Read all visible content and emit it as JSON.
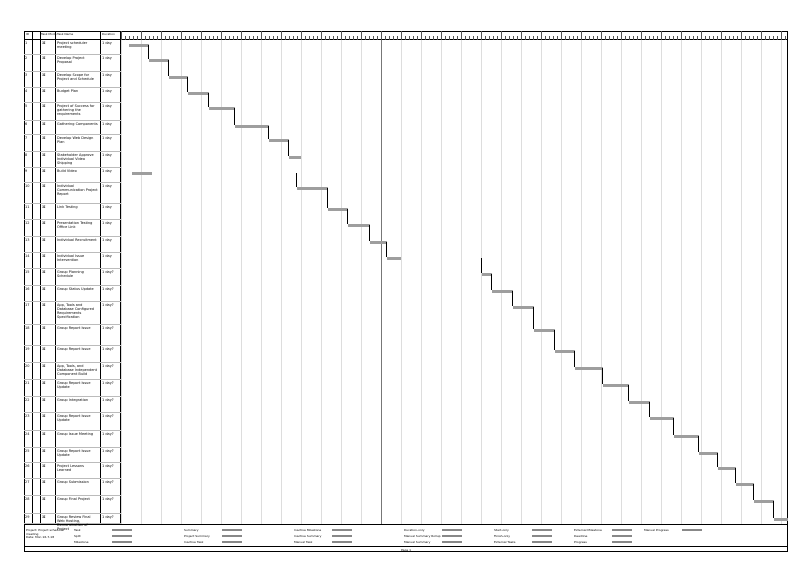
{
  "columns": {
    "id": "ID",
    "mode": "Task Mode",
    "name": "Task Name",
    "duration": "Duration"
  },
  "tasks": [
    {
      "id": "1",
      "name": "Project scheduler meeting",
      "duration": "1 day"
    },
    {
      "id": "2",
      "name": "Develop Project Proposal",
      "duration": "1 day"
    },
    {
      "id": "3",
      "name": "Develop Scope for Project and Schedule",
      "duration": "1 day"
    },
    {
      "id": "4",
      "name": "Budget Plan",
      "duration": "1 day"
    },
    {
      "id": "5",
      "name": "Project of Success for gathering the requirements",
      "duration": "1 day"
    },
    {
      "id": "6",
      "name": "Gathering Components",
      "duration": "1 day"
    },
    {
      "id": "7",
      "name": "Develop Web Design Plan",
      "duration": "1 day"
    },
    {
      "id": "8",
      "name": "Stakeholder Approve Individual Video Shipping",
      "duration": "1 day"
    },
    {
      "id": "9",
      "name": "Build Video",
      "duration": "1 day"
    },
    {
      "id": "10",
      "name": "Individual Communication Project Report",
      "duration": "1 day"
    },
    {
      "id": "11",
      "name": "Link Testing",
      "duration": "1 day"
    },
    {
      "id": "12",
      "name": "Presentation Testing Office Link",
      "duration": "1 day"
    },
    {
      "id": "13",
      "name": "Individual Recruitment",
      "duration": "1 day"
    },
    {
      "id": "14",
      "name": "Individual Issue Intervention",
      "duration": "1 day"
    },
    {
      "id": "15",
      "name": "Group Planning Schedule",
      "duration": "1 day?"
    },
    {
      "id": "16",
      "name": "Group Status Update",
      "duration": "1 day?"
    },
    {
      "id": "17",
      "name": "App, Tools and Database Configured Requirements Specification",
      "duration": "1 day?"
    },
    {
      "id": "18",
      "name": "Group Report Issue",
      "duration": "1 day?"
    },
    {
      "id": "19",
      "name": "Group Report Issue",
      "duration": "1 day?"
    },
    {
      "id": "20",
      "name": "App, Tools, and Database Independent Component Build",
      "duration": "1 day?"
    },
    {
      "id": "21",
      "name": "Group Report Issue Update",
      "duration": "1 day?"
    },
    {
      "id": "22",
      "name": "Group Integration",
      "duration": "1 day?"
    },
    {
      "id": "23",
      "name": "Group Report Issue Update",
      "duration": "1 day?"
    },
    {
      "id": "24",
      "name": "Group Issue Meeting",
      "duration": "1 day?"
    },
    {
      "id": "25",
      "name": "Group Report Issue Update",
      "duration": "1 day?"
    },
    {
      "id": "26",
      "name": "Project Lessons Learned",
      "duration": "1 day?"
    },
    {
      "id": "27",
      "name": "Group Submission",
      "duration": "1 day?"
    },
    {
      "id": "28",
      "name": "Group Final Project",
      "duration": "1 day?"
    },
    {
      "id": "29",
      "name": "Group Review Final Web Hosting, Demonstration of Project",
      "duration": "1 day?"
    }
  ],
  "legend": {
    "project_info": "Project: Project scheduler meeting",
    "date_info": "Date: Mon 16-7-18",
    "items": [
      "Task",
      "Split",
      "Milestone",
      "Summary",
      "Project Summary",
      "Inactive Task",
      "Inactive Milestone",
      "Inactive Summary",
      "Manual Task",
      "Duration-only",
      "Manual Summary Rollup",
      "Manual Summary",
      "Start-only",
      "Finish-only",
      "External Tasks",
      "External Milestone",
      "Deadline",
      "Progress",
      "Manual Progress"
    ]
  },
  "footer": "Page 1"
}
